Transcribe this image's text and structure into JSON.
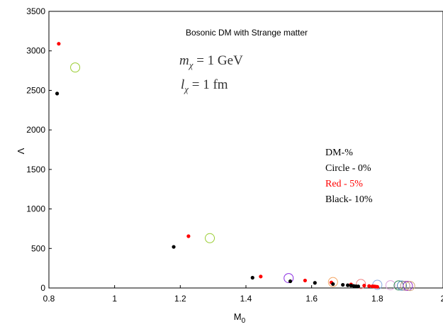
{
  "chart_data": {
    "type": "scatter",
    "title": "Bosonic DM with Strange matter",
    "xlabel": "M",
    "xlabel_sub": "0",
    "ylabel": "Λ",
    "xlim": [
      0.8,
      2.0
    ],
    "ylim": [
      0,
      3500
    ],
    "x_ticks": [
      "0.8",
      "1",
      "1.2",
      "1.4",
      "1.6",
      "1.8",
      "2"
    ],
    "y_ticks": [
      "0",
      "500",
      "1000",
      "1500",
      "2000",
      "2500",
      "3000",
      "3500"
    ],
    "grid": false,
    "annotations": {
      "m_chi": {
        "symbol": "m",
        "sub": "χ",
        "rest": " = 1  GeV"
      },
      "l_chi": {
        "symbol": "l",
        "sub": "χ",
        "rest": " = 1  fm"
      }
    },
    "legend": {
      "placement": "right",
      "heading": "DM-%",
      "entries": [
        "Circle - 0%",
        "Red - 5%",
        "Black- 10%"
      ]
    },
    "series": [
      {
        "name": "Circle - 0%",
        "marker": "open-circle",
        "points": [
          {
            "x": 0.88,
            "y": 2790,
            "color": "#9acd32"
          },
          {
            "x": 1.29,
            "y": 630,
            "color": "#9acd32"
          },
          {
            "x": 1.53,
            "y": 125,
            "color": "#8a2be2"
          },
          {
            "x": 1.665,
            "y": 75,
            "color": "#f4a460"
          },
          {
            "x": 1.75,
            "y": 50,
            "color": "#f08080"
          },
          {
            "x": 1.8,
            "y": 40,
            "color": "#87a8e0"
          },
          {
            "x": 1.84,
            "y": 35,
            "color": "#dda0dd"
          },
          {
            "x": 1.865,
            "y": 32,
            "color": "#2e8b57"
          },
          {
            "x": 1.875,
            "y": 30,
            "color": "#4682b4"
          },
          {
            "x": 1.885,
            "y": 28,
            "color": "#bc8f8f"
          },
          {
            "x": 1.893,
            "y": 27,
            "color": "#9932cc"
          },
          {
            "x": 1.9,
            "y": 25,
            "color": "#d2a679"
          }
        ]
      },
      {
        "name": "Red - 5%",
        "marker": "dot",
        "points": [
          {
            "x": 0.83,
            "y": 3090,
            "color": "#ff0000"
          },
          {
            "x": 1.225,
            "y": 655,
            "color": "#ff0000"
          },
          {
            "x": 1.445,
            "y": 145,
            "color": "#ff0000"
          },
          {
            "x": 1.58,
            "y": 95,
            "color": "#ff0000"
          },
          {
            "x": 1.66,
            "y": 70,
            "color": "#ff0000"
          },
          {
            "x": 1.72,
            "y": 45,
            "color": "#ff0000"
          },
          {
            "x": 1.76,
            "y": 30,
            "color": "#ff0000"
          },
          {
            "x": 1.775,
            "y": 25,
            "color": "#ff0000"
          },
          {
            "x": 1.785,
            "y": 22,
            "color": "#ff0000"
          },
          {
            "x": 1.79,
            "y": 20,
            "color": "#ff0000"
          },
          {
            "x": 1.795,
            "y": 18,
            "color": "#ff0000"
          },
          {
            "x": 1.8,
            "y": 15,
            "color": "#ff0000"
          }
        ]
      },
      {
        "name": "Black- 10%",
        "marker": "dot",
        "points": [
          {
            "x": 0.825,
            "y": 2460,
            "color": "#000000"
          },
          {
            "x": 1.18,
            "y": 520,
            "color": "#000000"
          },
          {
            "x": 1.42,
            "y": 130,
            "color": "#000000"
          },
          {
            "x": 1.535,
            "y": 85,
            "color": "#000000"
          },
          {
            "x": 1.61,
            "y": 65,
            "color": "#000000"
          },
          {
            "x": 1.665,
            "y": 50,
            "color": "#000000"
          },
          {
            "x": 1.695,
            "y": 40,
            "color": "#000000"
          },
          {
            "x": 1.71,
            "y": 35,
            "color": "#000000"
          },
          {
            "x": 1.72,
            "y": 30,
            "color": "#000000"
          },
          {
            "x": 1.728,
            "y": 26,
            "color": "#000000"
          },
          {
            "x": 1.735,
            "y": 22,
            "color": "#000000"
          },
          {
            "x": 1.742,
            "y": 20,
            "color": "#000000"
          }
        ]
      }
    ]
  }
}
